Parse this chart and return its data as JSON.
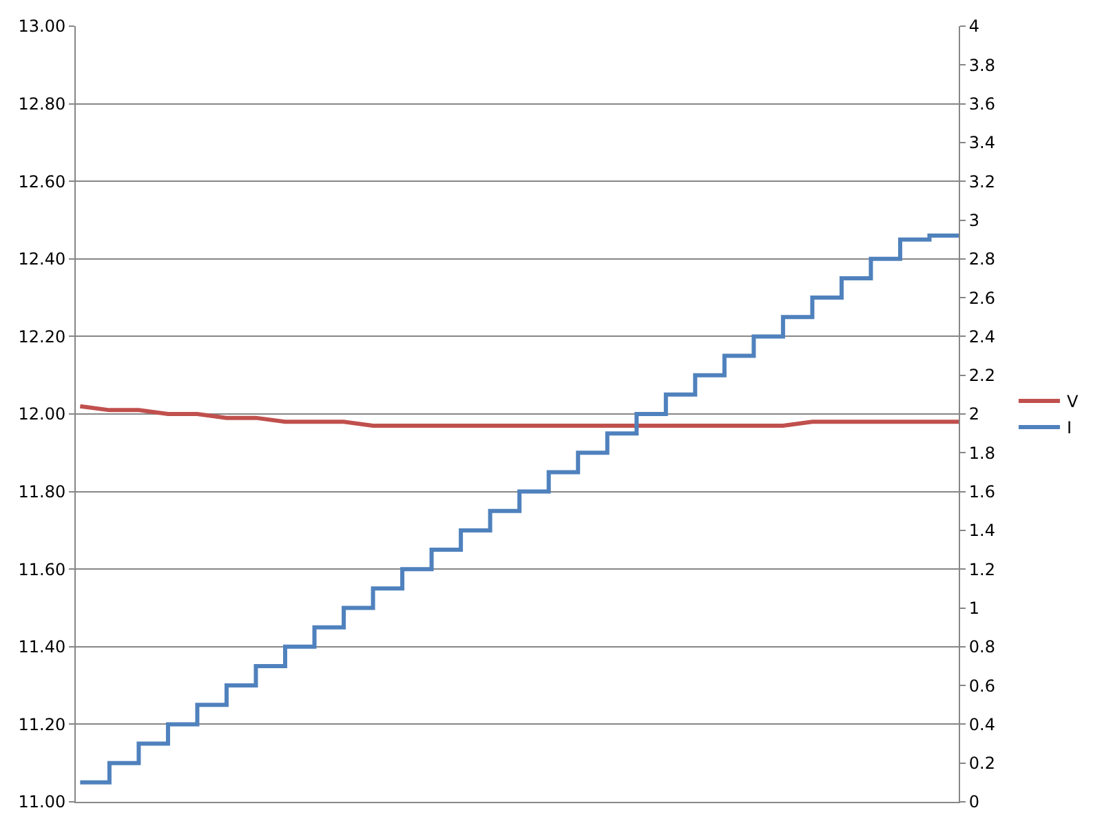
{
  "chart_data": {
    "type": "line",
    "categories": [
      null,
      null,
      null,
      null,
      null,
      null,
      null,
      null,
      null,
      null,
      null,
      null,
      null,
      null,
      null,
      null,
      null,
      null,
      null,
      null,
      null,
      null,
      null,
      null,
      null,
      null,
      null,
      null,
      null,
      null,
      null
    ],
    "series": [
      {
        "name": "V",
        "color": "#c0504d",
        "values": [
          12.02,
          12.01,
          12.01,
          12.0,
          12.0,
          11.99,
          11.99,
          11.98,
          11.98,
          11.98,
          11.97,
          11.97,
          11.97,
          11.97,
          11.97,
          11.97,
          11.97,
          11.97,
          11.97,
          11.97,
          11.97,
          11.97,
          11.97,
          11.97,
          11.97,
          11.98,
          11.98,
          11.98,
          11.98,
          11.98,
          11.98
        ]
      },
      {
        "name": "I",
        "color": "#4f81bd",
        "type": "step",
        "axis": "y2",
        "values": [
          0.1,
          0.2,
          0.3,
          0.4,
          0.5,
          0.6,
          0.7,
          0.8,
          0.9,
          1.0,
          1.1,
          1.2,
          1.3,
          1.4,
          1.5,
          1.6,
          1.7,
          1.8,
          1.9,
          2.0,
          2.1,
          2.2,
          2.3,
          2.4,
          2.5,
          2.6,
          2.7,
          2.8,
          2.9,
          2.92,
          2.92
        ]
      }
    ],
    "ylim": [
      11,
      13
    ],
    "yticks": [
      {
        "value": 11,
        "label": "11.00"
      },
      {
        "value": 11.2,
        "label": "11.20"
      },
      {
        "value": 11.4,
        "label": "11.40"
      },
      {
        "value": 11.6,
        "label": "11.60"
      },
      {
        "value": 11.8,
        "label": "11.80"
      },
      {
        "value": 12,
        "label": "12.00"
      },
      {
        "value": 12.2,
        "label": "12.20"
      },
      {
        "value": 12.4,
        "label": "12.40"
      },
      {
        "value": 12.6,
        "label": "12.60"
      },
      {
        "value": 12.8,
        "label": "12.80"
      },
      {
        "value": 13,
        "label": "13.00"
      }
    ],
    "y2lim": [
      0,
      4
    ],
    "y2ticks": [
      0,
      0.2,
      0.4,
      0.6,
      0.8,
      1,
      1.2,
      1.4,
      1.6,
      1.8,
      2,
      2.2,
      2.4,
      2.6,
      2.8,
      3,
      3.2,
      3.4,
      3.6,
      3.8,
      4
    ],
    "grid": "y",
    "legend": "right",
    "marker": "none",
    "line_style": "solid"
  }
}
